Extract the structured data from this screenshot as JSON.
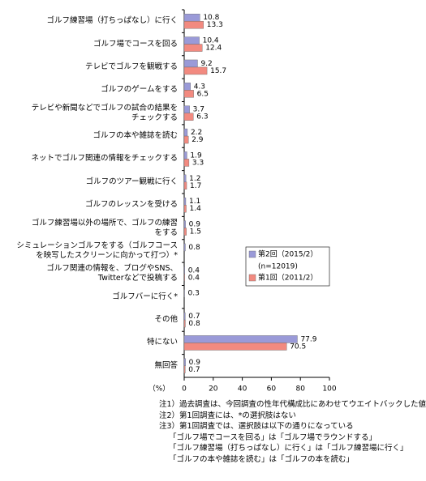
{
  "chart_data": {
    "type": "bar",
    "orientation": "horizontal",
    "categories": [
      "ゴルフ練習場（打ちっぱなし）に行く",
      "ゴルフ場でコースを回る",
      "テレビでゴルフを観戦する",
      "ゴルフのゲームをする",
      "テレビや新聞などでゴルフの試合の結果を\nチェックする",
      "ゴルフの本や雑誌を読む",
      "ネットでゴルフ関連の情報をチェックする",
      "ゴルフのツアー観戦に行く",
      "ゴルフのレッスンを受ける",
      "ゴルフ練習場以外の場所で、ゴルフの練習\nをする",
      "シミュレーションゴルフをする（ゴルフコース\nを映写したスクリーンに向かって打つ）*",
      "ゴルフ関連の情報を、ブログやSNS、\nTwitterなどで投稿する",
      "ゴルフバーに行く*",
      "その他",
      "特にない",
      "無回答"
    ],
    "series": [
      {
        "name": "第2回（2015/2）",
        "color": "#9a9ad8",
        "values": [
          10.8,
          10.4,
          9.2,
          4.3,
          3.7,
          2.2,
          1.9,
          1.2,
          1.1,
          0.9,
          0.8,
          0.4,
          0.3,
          0.7,
          77.9,
          0.9
        ]
      },
      {
        "name": "第1回（2011/2）",
        "color": "#f28a80",
        "values": [
          13.3,
          12.4,
          15.7,
          6.5,
          6.3,
          2.9,
          3.3,
          1.7,
          1.4,
          1.5,
          null,
          0.4,
          null,
          0.8,
          70.5,
          0.7
        ]
      }
    ],
    "legend_note": "(n=12019)",
    "legend": "right",
    "xlim": [
      0,
      100
    ],
    "xticks": [
      0,
      20,
      40,
      60,
      80,
      100
    ],
    "xlabel": "（%）",
    "grid": false,
    "notes": [
      "注1）過去調査は、今回調査の性年代構成比にあわせてウエイトバックした値",
      "注2）第1回調査には、*の選択肢はない",
      "注3）第1回調査では、選択肢は以下の通りになっている",
      "「ゴルフ場でコースを回る」は「ゴルフ場でラウンドする」",
      "「ゴルフ練習場（打ちっぱなし）に行く」は「ゴルフ練習場に行く」",
      "「ゴルフの本や雑誌を読む」は「ゴルフの本を読む」"
    ]
  }
}
